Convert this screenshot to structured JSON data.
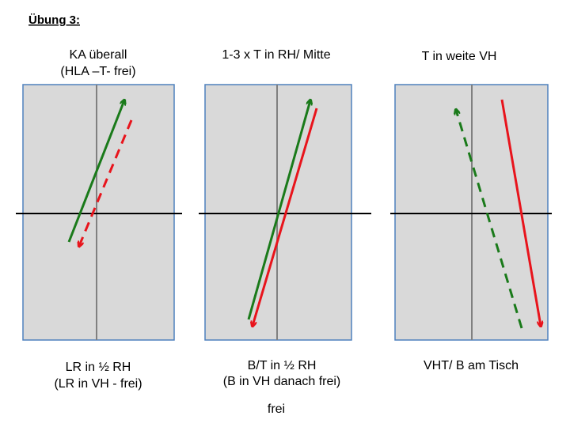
{
  "header": {
    "title": "Übung 3:"
  },
  "panels": [
    {
      "top": [
        "KA überall",
        "(HLA –T- frei)"
      ],
      "bottom": [
        "LR in ½ RH",
        "(LR in VH - frei)"
      ]
    },
    {
      "top": [
        "1-3 x T in RH/ Mitte"
      ],
      "bottom": [
        "B/T in ½ RH",
        "(B in VH danach frei)"
      ]
    },
    {
      "top": [
        "T in weite VH"
      ],
      "bottom": [
        "VHT/ B am Tisch"
      ]
    }
  ],
  "footer": "frei"
}
